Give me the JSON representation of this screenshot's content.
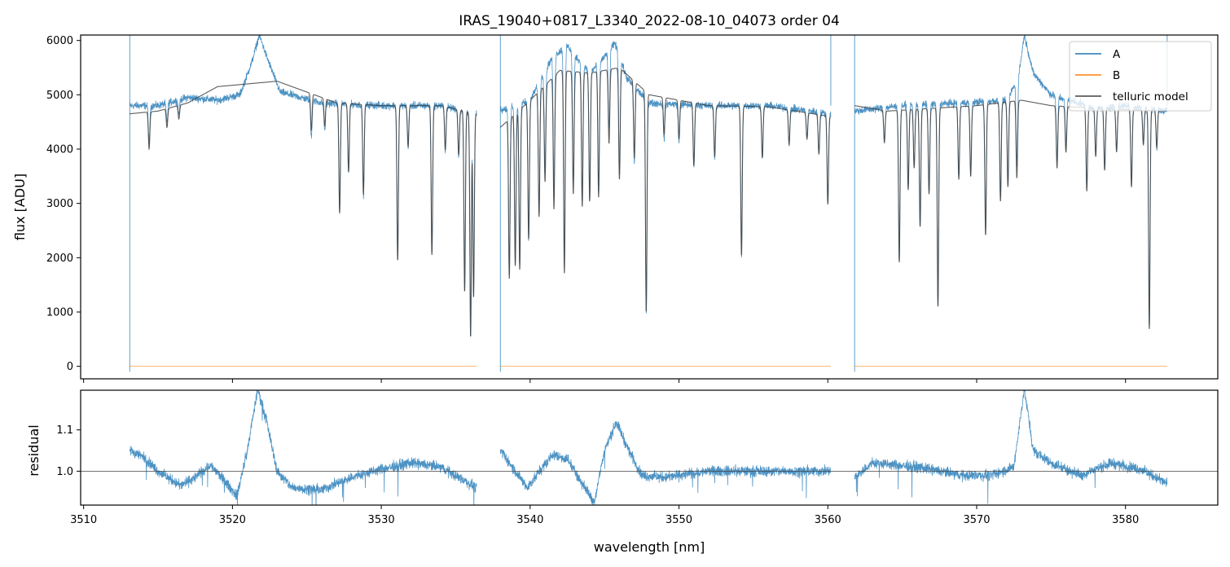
{
  "chart_data": [
    {
      "type": "line",
      "panel": "top",
      "title": "IRAS_19040+0817_L3340_2022-08-10_04073  order 04",
      "xlabel": "",
      "ylabel": "flux [ADU]",
      "xlim": [
        3509.8,
        3586.2
      ],
      "ylim": [
        -230,
        6100
      ],
      "yticks": [
        0,
        1000,
        2000,
        3000,
        4000,
        5000,
        6000
      ],
      "xticks": [
        3510,
        3520,
        3530,
        3540,
        3550,
        3560,
        3570,
        3580
      ],
      "grid": false,
      "legend_position": "top-right",
      "segments": [
        [
          3513.1,
          3536.4
        ],
        [
          3538.0,
          3560.2
        ],
        [
          3561.8,
          3582.8
        ]
      ],
      "series": [
        {
          "name": "A",
          "color": "#1f77b4"
        },
        {
          "name": "B",
          "color": "#ff7f0e"
        },
        {
          "name": "telluric model",
          "color": "#404040"
        }
      ],
      "continuum_A": [
        [
          3513.1,
          4800
        ],
        [
          3515,
          4800
        ],
        [
          3517,
          4950
        ],
        [
          3519,
          4900
        ],
        [
          3520.5,
          5000
        ],
        [
          3521.3,
          5600
        ],
        [
          3521.8,
          6100
        ],
        [
          3522.3,
          5700
        ],
        [
          3523.2,
          5050
        ],
        [
          3526,
          4850
        ],
        [
          3530,
          4800
        ],
        [
          3534,
          4800
        ],
        [
          3536.4,
          4650
        ],
        [
          3538.0,
          4700
        ],
        [
          3540,
          4900
        ],
        [
          3541.5,
          5700
        ],
        [
          3542.5,
          5900
        ],
        [
          3544,
          5400
        ],
        [
          3545,
          5700
        ],
        [
          3545.7,
          5950
        ],
        [
          3546.5,
          5300
        ],
        [
          3548,
          4850
        ],
        [
          3552,
          4800
        ],
        [
          3556,
          4800
        ],
        [
          3560.2,
          4650
        ],
        [
          3561.8,
          4700
        ],
        [
          3565,
          4800
        ],
        [
          3569,
          4850
        ],
        [
          3572,
          4900
        ],
        [
          3572.8,
          5300
        ],
        [
          3573.2,
          6100
        ],
        [
          3573.8,
          5400
        ],
        [
          3575,
          5000
        ],
        [
          3578,
          4750
        ],
        [
          3580,
          4800
        ],
        [
          3582.8,
          4700
        ]
      ],
      "continuum_model": [
        [
          3513.1,
          4650
        ],
        [
          3515,
          4700
        ],
        [
          3517,
          4850
        ],
        [
          3519,
          5150
        ],
        [
          3521,
          5200
        ],
        [
          3523,
          5250
        ],
        [
          3525,
          5050
        ],
        [
          3527,
          4850
        ],
        [
          3530,
          4800
        ],
        [
          3534,
          4800
        ],
        [
          3536.4,
          4650
        ],
        [
          3538.0,
          4400
        ],
        [
          3540,
          4900
        ],
        [
          3542,
          5450
        ],
        [
          3544,
          5400
        ],
        [
          3546,
          5500
        ],
        [
          3548,
          5000
        ],
        [
          3552,
          4800
        ],
        [
          3556,
          4780
        ],
        [
          3560.2,
          4600
        ],
        [
          3561.8,
          4800
        ],
        [
          3564,
          4700
        ],
        [
          3567,
          4750
        ],
        [
          3570,
          4800
        ],
        [
          3573,
          4900
        ],
        [
          3575,
          4800
        ],
        [
          3578,
          4750
        ],
        [
          3582.8,
          4700
        ]
      ],
      "absorption_lines": [
        [
          3514.4,
          4100
        ],
        [
          3515.6,
          4450
        ],
        [
          3516.4,
          4550
        ],
        [
          3525.3,
          4150
        ],
        [
          3526.2,
          4300
        ],
        [
          3527.2,
          2800
        ],
        [
          3527.8,
          3550
        ],
        [
          3528.8,
          3150
        ],
        [
          3531.1,
          1950
        ],
        [
          3531.8,
          4050
        ],
        [
          3533.4,
          2050
        ],
        [
          3534.3,
          4000
        ],
        [
          3535.2,
          3950
        ],
        [
          3535.6,
          1400
        ],
        [
          3536.0,
          550
        ],
        [
          3536.2,
          1300
        ],
        [
          3538.6,
          1700
        ],
        [
          3539.0,
          1900
        ],
        [
          3539.3,
          1800
        ],
        [
          3539.9,
          2300
        ],
        [
          3540.6,
          2600
        ],
        [
          3541.0,
          3150
        ],
        [
          3541.6,
          2600
        ],
        [
          3542.3,
          1500
        ],
        [
          3542.9,
          2800
        ],
        [
          3543.5,
          2600
        ],
        [
          3544.0,
          2700
        ],
        [
          3544.6,
          2750
        ],
        [
          3545.3,
          3600
        ],
        [
          3546.0,
          3000
        ],
        [
          3547.0,
          3500
        ],
        [
          3547.8,
          950
        ],
        [
          3549.0,
          4150
        ],
        [
          3550.0,
          4100
        ],
        [
          3551.0,
          3650
        ],
        [
          3552.4,
          3850
        ],
        [
          3554.2,
          2050
        ],
        [
          3555.6,
          3850
        ],
        [
          3557.4,
          4150
        ],
        [
          3558.6,
          4300
        ],
        [
          3559.4,
          4050
        ],
        [
          3560.0,
          3100
        ],
        [
          3563.8,
          4200
        ],
        [
          3564.8,
          1950
        ],
        [
          3565.4,
          3300
        ],
        [
          3565.8,
          3700
        ],
        [
          3566.2,
          2600
        ],
        [
          3566.8,
          3200
        ],
        [
          3567.4,
          1100
        ],
        [
          3568.8,
          3450
        ],
        [
          3569.6,
          3500
        ],
        [
          3570.6,
          2400
        ],
        [
          3571.6,
          3000
        ],
        [
          3572.1,
          3250
        ],
        [
          3572.7,
          3400
        ],
        [
          3575.4,
          3650
        ],
        [
          3576.0,
          3950
        ],
        [
          3577.4,
          3250
        ],
        [
          3578.0,
          3900
        ],
        [
          3578.6,
          3650
        ],
        [
          3579.4,
          4000
        ],
        [
          3580.4,
          3350
        ],
        [
          3581.2,
          4150
        ],
        [
          3581.6,
          700
        ],
        [
          3582.1,
          4100
        ]
      ],
      "series_B_value": 0
    },
    {
      "type": "line",
      "panel": "bottom",
      "title": "",
      "xlabel": "wavelength [nm]",
      "ylabel": "residual",
      "xlim": [
        3509.8,
        3586.2
      ],
      "ylim": [
        0.918,
        1.196
      ],
      "yticks": [
        1.0,
        1.1
      ],
      "ytick_labels": [
        "1.0",
        "1.1"
      ],
      "xticks": [
        3510,
        3520,
        3530,
        3540,
        3550,
        3560,
        3570,
        3580
      ],
      "reference_line": 1.0,
      "grid": false,
      "residual_trend": [
        [
          3513.1,
          1.05
        ],
        [
          3514,
          1.035
        ],
        [
          3515,
          1.0
        ],
        [
          3516.5,
          0.965
        ],
        [
          3517.5,
          0.985
        ],
        [
          3518.5,
          1.015
        ],
        [
          3519.5,
          0.975
        ],
        [
          3520.3,
          0.94
        ],
        [
          3521.0,
          1.05
        ],
        [
          3521.7,
          1.2
        ],
        [
          3522.3,
          1.12
        ],
        [
          3523.0,
          1.0
        ],
        [
          3524.0,
          0.96
        ],
        [
          3526.0,
          0.955
        ],
        [
          3528.0,
          0.985
        ],
        [
          3530.0,
          1.005
        ],
        [
          3532.0,
          1.02
        ],
        [
          3534.0,
          1.01
        ],
        [
          3536.4,
          0.96
        ],
        [
          3538.0,
          1.05
        ],
        [
          3539.0,
          1.0
        ],
        [
          3539.8,
          0.96
        ],
        [
          3541.5,
          1.04
        ],
        [
          3542.5,
          1.03
        ],
        [
          3543.5,
          0.97
        ],
        [
          3544.3,
          0.925
        ],
        [
          3545.0,
          1.05
        ],
        [
          3545.8,
          1.12
        ],
        [
          3546.5,
          1.06
        ],
        [
          3547.5,
          0.99
        ],
        [
          3549.0,
          0.985
        ],
        [
          3552.0,
          1.0
        ],
        [
          3556.0,
          1.0
        ],
        [
          3560.2,
          1.0
        ],
        [
          3561.8,
          0.985
        ],
        [
          3563.0,
          1.02
        ],
        [
          3566.0,
          1.01
        ],
        [
          3569.0,
          0.99
        ],
        [
          3571.0,
          0.99
        ],
        [
          3572.5,
          1.01
        ],
        [
          3573.2,
          1.2
        ],
        [
          3573.8,
          1.05
        ],
        [
          3575.0,
          1.02
        ],
        [
          3577.0,
          0.99
        ],
        [
          3579.0,
          1.02
        ],
        [
          3581.0,
          1.005
        ],
        [
          3582.8,
          0.97
        ]
      ]
    }
  ]
}
